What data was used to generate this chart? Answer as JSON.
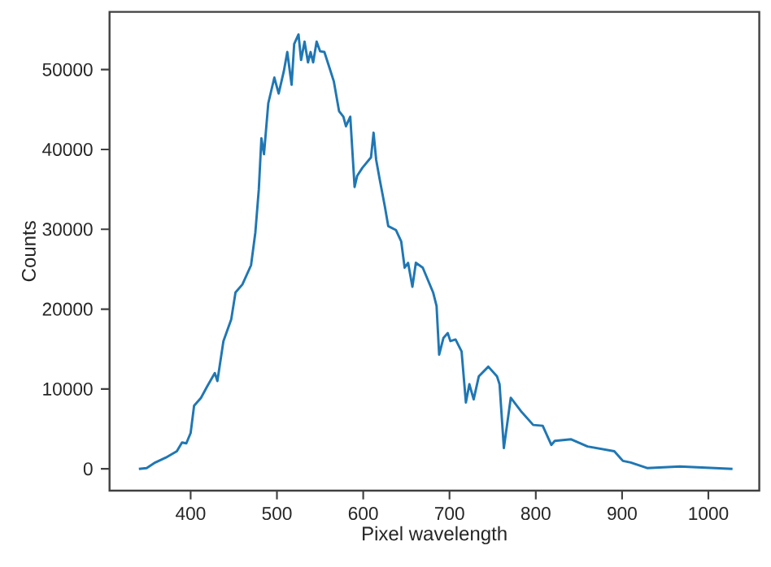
{
  "chart_data": {
    "type": "line",
    "xlabel": "Pixel wavelength",
    "ylabel": "Counts",
    "xlim": [
      306,
      1059
    ],
    "ylim": [
      -2725,
      57225
    ],
    "xticks": [
      400,
      500,
      600,
      700,
      800,
      900,
      1000
    ],
    "yticks": [
      0,
      10000,
      20000,
      30000,
      40000,
      50000
    ],
    "marker": "none",
    "line_style": "solid",
    "series": [
      {
        "color": "#1f77b4",
        "x": [
          340,
          349,
          359,
          371,
          384,
          390,
          395,
          400,
          404,
          412,
          419,
          428,
          431,
          438,
          447,
          452,
          460,
          470,
          475,
          479,
          482,
          485,
          490,
          497,
          502,
          508,
          512,
          517,
          520,
          525,
          528,
          532,
          536,
          539,
          542,
          546,
          550,
          555,
          561,
          566,
          572,
          577,
          580,
          585,
          590,
          593,
          599,
          609,
          612,
          615,
          619,
          625,
          629,
          638,
          644,
          648,
          652,
          657,
          661,
          669,
          681,
          685,
          688,
          693,
          698,
          701,
          707,
          714,
          719,
          723,
          728,
          734,
          745,
          755,
          758,
          763,
          771,
          783,
          797,
          808,
          818,
          822,
          841,
          860,
          891,
          901,
          910,
          929,
          967,
          1028
        ],
        "values": [
          0,
          100,
          800,
          1400,
          2200,
          3300,
          3200,
          4500,
          7900,
          8900,
          10300,
          12000,
          11000,
          16000,
          18700,
          22100,
          23100,
          25500,
          29600,
          35000,
          41400,
          39400,
          45800,
          49000,
          47000,
          49800,
          52200,
          48100,
          53200,
          54400,
          51200,
          53500,
          50900,
          52200,
          50900,
          53500,
          52300,
          52200,
          50200,
          48500,
          44800,
          44100,
          42900,
          44100,
          35300,
          36700,
          37700,
          39000,
          42100,
          38700,
          36300,
          32900,
          30400,
          29900,
          28500,
          25200,
          25800,
          22800,
          25800,
          25200,
          22100,
          20400,
          14300,
          16400,
          17000,
          16000,
          16200,
          14700,
          8300,
          10600,
          8700,
          11600,
          12800,
          11600,
          10600,
          2600,
          8900,
          7200,
          5500,
          5400,
          3000,
          3500,
          3700,
          2800,
          2200,
          1000,
          800,
          100,
          300,
          0
        ]
      }
    ]
  }
}
